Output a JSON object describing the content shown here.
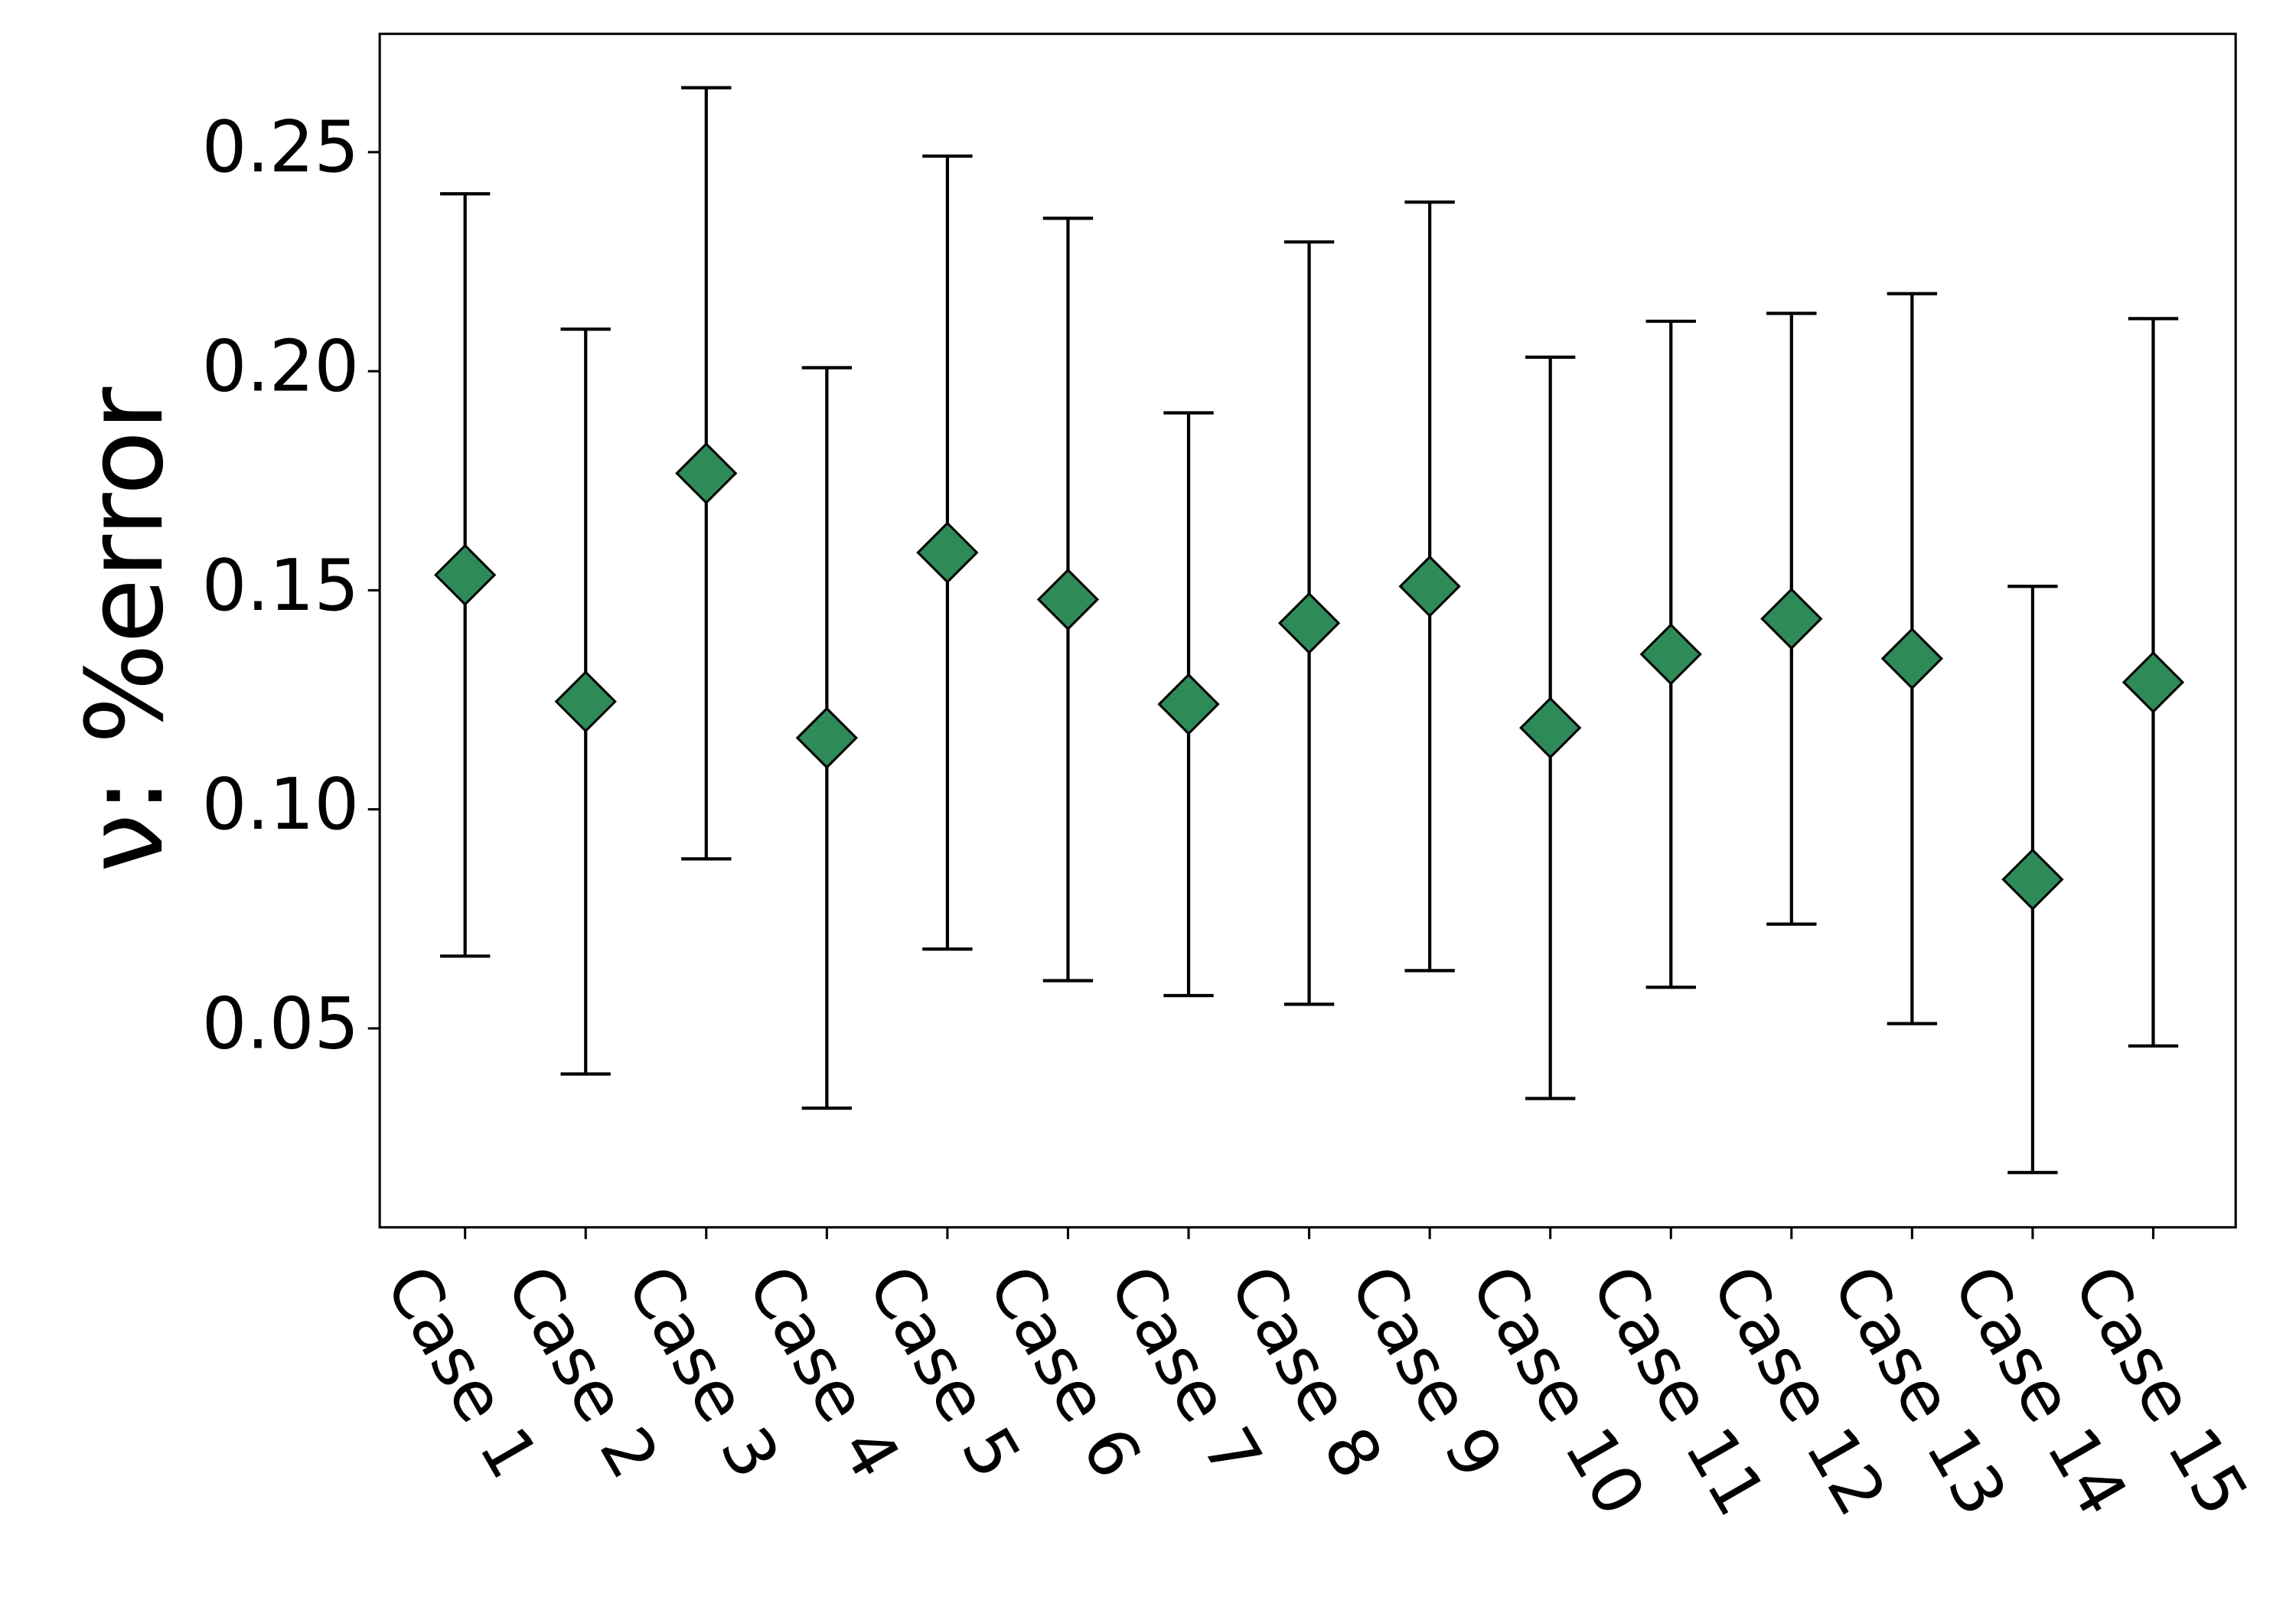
{
  "chart_data": {
    "type": "errorbar",
    "y_label": "ν: %error",
    "categories": [
      "Case 1",
      "Case 2",
      "Case 3",
      "Case 4",
      "Case 5",
      "Case 6",
      "Case 7",
      "Case 8",
      "Case 9",
      "Case 10",
      "Case 11",
      "Case 12",
      "Case 13",
      "Case 14",
      "Case 15"
    ],
    "values": [
      0.1535,
      0.1246,
      0.1767,
      0.1163,
      0.1586,
      0.1479,
      0.124,
      0.1425,
      0.1509,
      0.1186,
      0.1354,
      0.1435,
      0.1344,
      0.084,
      0.129
    ],
    "errors": [
      0.087,
      0.085,
      0.088,
      0.0845,
      0.0905,
      0.087,
      0.0665,
      0.087,
      0.0877,
      0.0846,
      0.076,
      0.0697,
      0.0833,
      0.0669,
      0.083
    ],
    "color": "#2e8b57",
    "ylim": [
      0.0046,
      0.277
    ],
    "yticks": [
      {
        "value": 0.05,
        "label": "0.05"
      },
      {
        "value": 0.1,
        "label": "0.10"
      },
      {
        "value": 0.15,
        "label": "0.15"
      },
      {
        "value": 0.2,
        "label": "0.20"
      },
      {
        "value": 0.25,
        "label": "0.25"
      }
    ],
    "grid": false
  }
}
